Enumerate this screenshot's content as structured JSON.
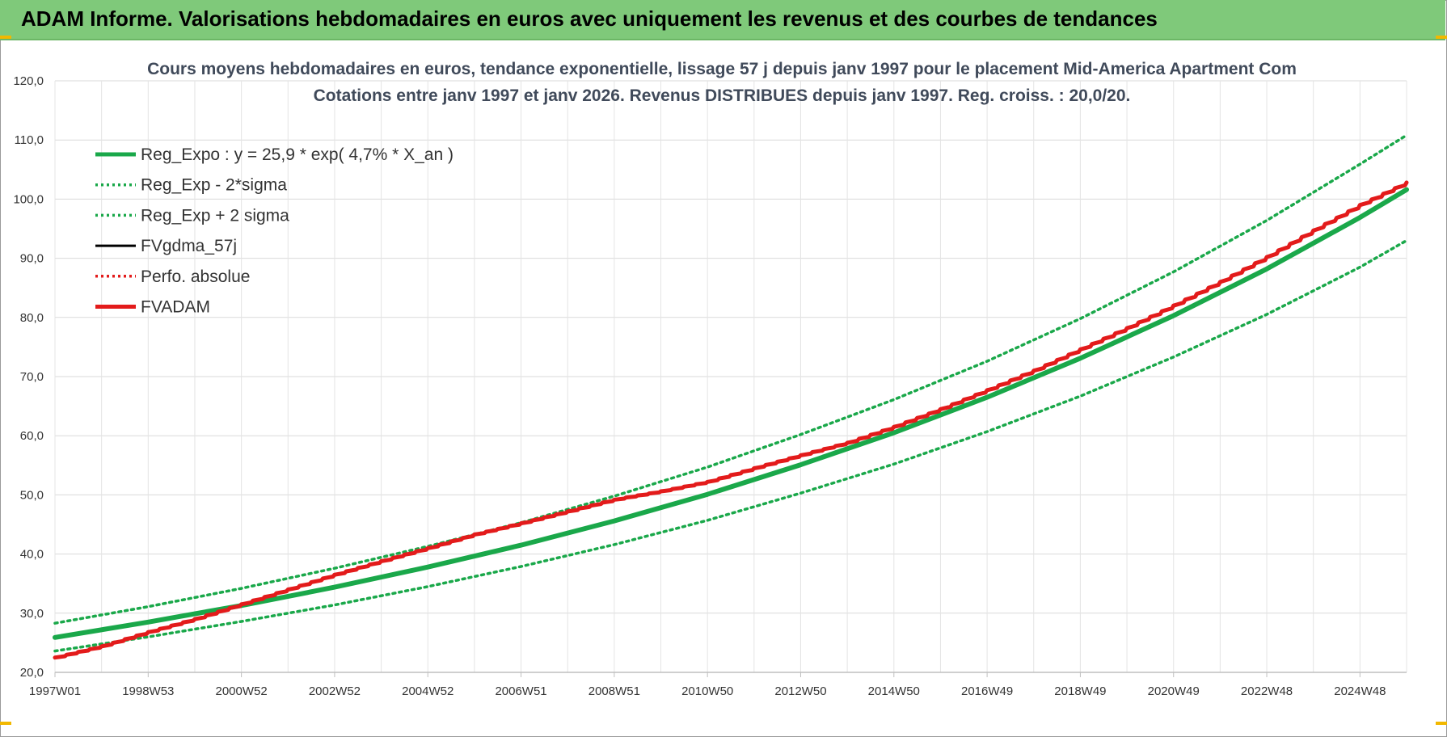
{
  "banner": {
    "title": "ADAM Informe. Valorisations hebdomadaires en euros avec uniquement les revenus et des courbes de tendances"
  },
  "colors": {
    "banner_bg": "#7fc97a",
    "reg_green": "#1aa84a",
    "adam_red": "#e31b1b",
    "grid": "#d9d9d9"
  },
  "chart_data": {
    "type": "line",
    "title": "Cours moyens hebdomadaires en euros, tendance exponentielle, lissage 57 j depuis janv 1997 pour le placement Mid-America Apartment Com",
    "subtitle": "Cotations entre janv 1997 et janv 2026. Revenus DISTRIBUES depuis janv 1997. Reg. croiss. : 20,0/20.",
    "xlabel": "",
    "ylabel": "",
    "ylim": [
      20,
      120
    ],
    "yticks": [
      "20,0",
      "30,0",
      "40,0",
      "50,0",
      "60,0",
      "70,0",
      "80,0",
      "90,0",
      "100,0",
      "110,0",
      "120,0"
    ],
    "xlim": [
      1997.0,
      2026.0
    ],
    "xtick_labels": [
      "1997W01",
      "1998W53",
      "2000W52",
      "2002W52",
      "2004W52",
      "2006W51",
      "2008W51",
      "2010W50",
      "2012W50",
      "2014W50",
      "2016W49",
      "2018W49",
      "2020W49",
      "2022W48",
      "2024W48"
    ],
    "grid": true,
    "legend_position": "top-left",
    "series": [
      {
        "name": "Reg_Expo : y = 25,9 * exp( 4,7% *  X_an )",
        "color": "#1aa84a",
        "style": "solid-thick",
        "x": [
          1997,
          1999,
          2001,
          2003,
          2005,
          2007,
          2009,
          2011,
          2013,
          2015,
          2017,
          2019,
          2021,
          2023,
          2025,
          2026
        ],
        "y": [
          25.9,
          28.5,
          31.3,
          34.4,
          37.8,
          41.5,
          45.6,
          50.1,
          55.1,
          60.5,
          66.5,
          73.1,
          80.3,
          88.2,
          96.9,
          101.6
        ]
      },
      {
        "name": "Reg_Exp - 2*sigma",
        "color": "#1aa84a",
        "style": "dotted",
        "x": [
          1997,
          1999,
          2001,
          2003,
          2005,
          2007,
          2009,
          2011,
          2013,
          2015,
          2017,
          2019,
          2021,
          2023,
          2025,
          2026
        ],
        "y": [
          23.6,
          26.0,
          28.6,
          31.4,
          34.5,
          37.9,
          41.6,
          45.7,
          50.3,
          55.2,
          60.7,
          66.7,
          73.3,
          80.5,
          88.5,
          93.0
        ]
      },
      {
        "name": "Reg_Exp + 2 sigma",
        "color": "#1aa84a",
        "style": "dotted",
        "x": [
          1997,
          1999,
          2001,
          2003,
          2005,
          2007,
          2009,
          2011,
          2013,
          2015,
          2017,
          2019,
          2021,
          2023,
          2025,
          2026
        ],
        "y": [
          28.3,
          31.1,
          34.2,
          37.6,
          41.3,
          45.3,
          49.8,
          54.7,
          60.2,
          66.1,
          72.6,
          79.8,
          87.7,
          96.4,
          105.9,
          110.8
        ]
      },
      {
        "name": "FVgdma_57j",
        "color": "#000000",
        "style": "solid",
        "x": [],
        "y": []
      },
      {
        "name": "Perfo. absolue",
        "color": "#e31b1b",
        "style": "dotted",
        "x": [],
        "y": []
      },
      {
        "name": "FVADAM",
        "color": "#e31b1b",
        "style": "solid-thick-stepped",
        "x": [
          1997,
          1998,
          1999,
          2000,
          2001,
          2002,
          2003,
          2004,
          2005,
          2006,
          2007,
          2008,
          2009,
          2010,
          2011,
          2012,
          2013,
          2014,
          2015,
          2016,
          2017,
          2018,
          2019,
          2020,
          2021,
          2022,
          2023,
          2024,
          2025,
          2026
        ],
        "y": [
          22.5,
          24.4,
          26.8,
          29.0,
          31.5,
          34.0,
          36.5,
          38.8,
          41.0,
          43.3,
          45.2,
          47.2,
          49.2,
          50.6,
          52.2,
          54.5,
          56.7,
          58.8,
          61.5,
          64.5,
          67.7,
          71.0,
          74.6,
          78.2,
          82.0,
          86.0,
          90.2,
          94.7,
          99.0,
          102.8
        ]
      }
    ]
  }
}
